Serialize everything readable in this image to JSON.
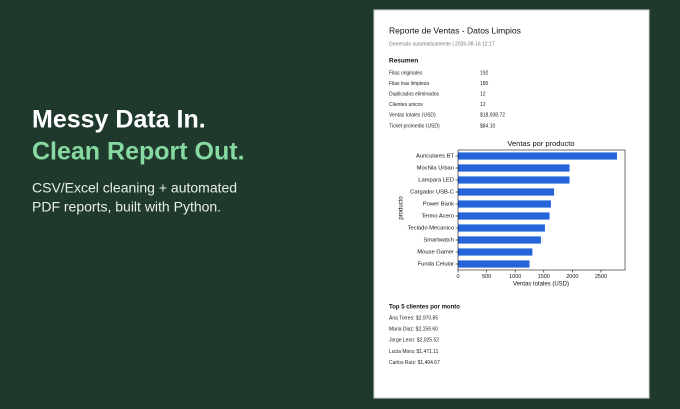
{
  "hero": {
    "headline": "Messy Data In.",
    "headline_accent": "Clean Report Out.",
    "tagline": [
      "CSV/Excel cleaning + automated",
      "PDF reports, built with Python."
    ]
  },
  "report": {
    "title": "Reporte de Ventas - Datos Limpios",
    "subtitle": "Generado automaticamente | 2026-08-16 12:17",
    "summary": {
      "heading": "Resumen",
      "rows": [
        [
          "Filas originales",
          "192"
        ],
        [
          "Filas tras limpieza",
          "180"
        ],
        [
          "Duplicados eliminados",
          "12"
        ],
        [
          "Clientes unicos",
          "12"
        ],
        [
          "Ventas totales (USD)",
          "$18,938.72"
        ],
        [
          "Ticket promedio (USD)",
          "$84.10"
        ]
      ]
    },
    "top_clients": {
      "heading": "Top 5 clientes por monto",
      "items": [
        "Ana Torres: $2,970.85",
        "Maria Diaz: $2,159.60",
        "Jorge Leon: $2,025.52",
        "Lucia Mora: $1,471.11",
        "Carlos Ruiz: $1,404.67"
      ]
    }
  },
  "chart_data": {
    "type": "barh",
    "title": "Ventas por producto",
    "x_label": "Ventas totales (USD)",
    "y_label": "producto",
    "categories": [
      "Auriculares BT",
      "Mochila Urban",
      "Lampara LED",
      "Cargador USB-C",
      "Power Bank",
      "Termo Acero",
      "Teclado Mecanico",
      "Smartwatch",
      "Mouse Gamer",
      "Funda Celular"
    ],
    "values": [
      2780,
      1950,
      1950,
      1680,
      1625,
      1600,
      1520,
      1450,
      1300,
      1250
    ],
    "color": "#2563d9",
    "xlim": [
      0,
      2920
    ],
    "xticks": [
      0,
      500,
      1000,
      1500,
      2000,
      2500
    ]
  }
}
